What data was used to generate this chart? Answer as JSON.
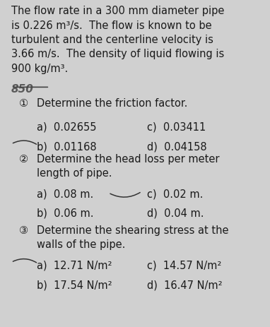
{
  "bg_color": "#d0d0d0",
  "text_color": "#1a1a1a",
  "intro_text": "The flow rate in a 300 mm diameter pipe\nis 0.226 m³/s.  The flow is known to be\nturbulent and the centerline velocity is\n3.66 m/s.  The density of liquid flowing is\n900 kg/m³.",
  "handwriting": "850",
  "q1_label": "①",
  "q1_text": "Determine the friction factor.",
  "q1_a": "a)  0.02655",
  "q1_b": "b)  0.01168",
  "q1_c": "c)  0.03411",
  "q1_d": "d)  0.04158",
  "q2_label": "②",
  "q2_text": "Determine the head loss per meter\nlength of pipe.",
  "q2_a": "a)  0.08 m.",
  "q2_b": "b)  0.06 m.",
  "q2_c": "c)  0.02 m.",
  "q2_d": "d)  0.04 m.",
  "q3_label": "③",
  "q3_text": "Determine the shearing stress at the\nwalls of the pipe.",
  "q3_a": "a)  12.71 N/m²",
  "q3_b": "b)  17.54 N/m²",
  "q3_c": "c)  14.57 N/m²",
  "q3_d": "d)  16.47 N/m²",
  "font_size_intro": 10.5,
  "font_size_q": 10.5,
  "font_size_ans": 10.5,
  "font_family": "DejaVu Sans"
}
